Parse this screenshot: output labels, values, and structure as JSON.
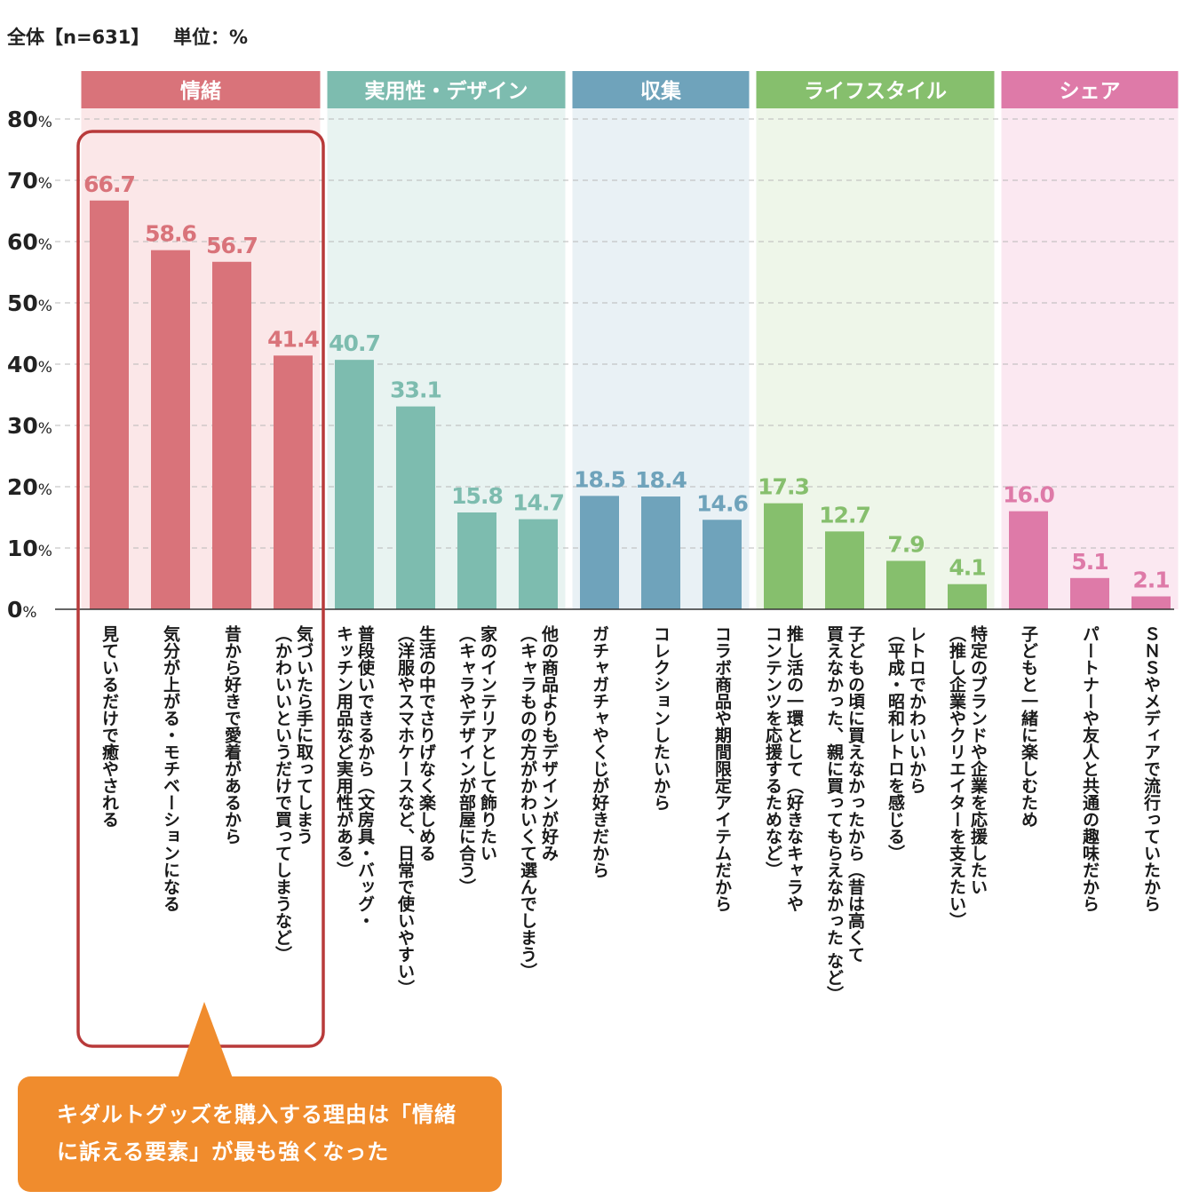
{
  "header": {
    "sample": "全体【n=631】",
    "unit": "単位：%"
  },
  "callout": {
    "line1": "キダルトグッズを購入する理由は「情緒",
    "line2": "に訴える要素」が最も強くなった"
  },
  "chart_data": {
    "type": "bar",
    "ylim": [
      0,
      80
    ],
    "yticks": [
      0,
      10,
      20,
      30,
      40,
      50,
      60,
      70,
      80
    ],
    "ytick_suffix": "%",
    "grid": true,
    "groups": [
      {
        "name": "情緒",
        "color": "#d9737a",
        "band": "#fbe7e8",
        "count": 4
      },
      {
        "name": "実用性・デザイン",
        "color": "#7dbcaf",
        "band": "#e8f3f1",
        "count": 4
      },
      {
        "name": "収集",
        "color": "#6fa3bb",
        "band": "#e9f1f5",
        "count": 3
      },
      {
        "name": "ライフスタイル",
        "color": "#86bf6d",
        "band": "#eef6e9",
        "count": 4
      },
      {
        "name": "シェア",
        "color": "#de7aa8",
        "band": "#fbe8f1",
        "count": 3
      }
    ],
    "categories": [
      [
        "見ているだけで癒やされる"
      ],
      [
        "気分が上がる・モチベーションになる"
      ],
      [
        "昔から好きで愛着があるから"
      ],
      [
        "気づいたら手に取ってしまう",
        "（かわいいというだけで買ってしまうなど）"
      ],
      [
        "普段使いできるから（文房具・バッグ・",
        "キッチン用品など実用性がある）"
      ],
      [
        "生活の中でさりげなく楽しめる",
        "（洋服やスマホケースなど、日常で使いやすい）"
      ],
      [
        "家のインテリアとして飾りたい",
        "（キャラやデザインが部屋に合う）"
      ],
      [
        "他の商品よりもデザインが好み",
        "（キャラものの方がかわいくて選んでしまう）"
      ],
      [
        "ガチャガチャやくじが好きだから"
      ],
      [
        "コレクションしたいから"
      ],
      [
        "コラボ商品や期間限定アイテムだから"
      ],
      [
        "推し活の一環として（好きなキャラや",
        "コンテンツを応援するためなど）"
      ],
      [
        "子どもの頃に買えなかったから（昔は高くて",
        "買えなかった、親に買ってもらえなかった など）"
      ],
      [
        "レトロでかわいいから",
        "（平成・昭和レトロを感じる）"
      ],
      [
        "特定のブランドや企業を応援したい",
        "（推し企業やクリエイターを支えたい）"
      ],
      [
        "子どもと一緒に楽しむため"
      ],
      [
        "パートナーや友人と共通の趣味だから"
      ],
      [
        "ＳＮＳやメディアで流行っていたから"
      ]
    ],
    "values": [
      66.7,
      58.6,
      56.7,
      41.4,
      40.7,
      33.1,
      15.8,
      14.7,
      18.5,
      18.4,
      14.6,
      17.3,
      12.7,
      7.9,
      4.1,
      16.0,
      5.1,
      2.1
    ],
    "value_labels": [
      "66.7",
      "58.6",
      "56.7",
      "41.4",
      "40.7",
      "33.1",
      "15.8",
      "14.7",
      "18.5",
      "18.4",
      "14.6",
      "17.3",
      "12.7",
      "7.9",
      "4.1",
      "16.0",
      "5.1",
      "2.1"
    ],
    "highlight": {
      "group": "情緒",
      "color": "#b83a3a"
    }
  }
}
